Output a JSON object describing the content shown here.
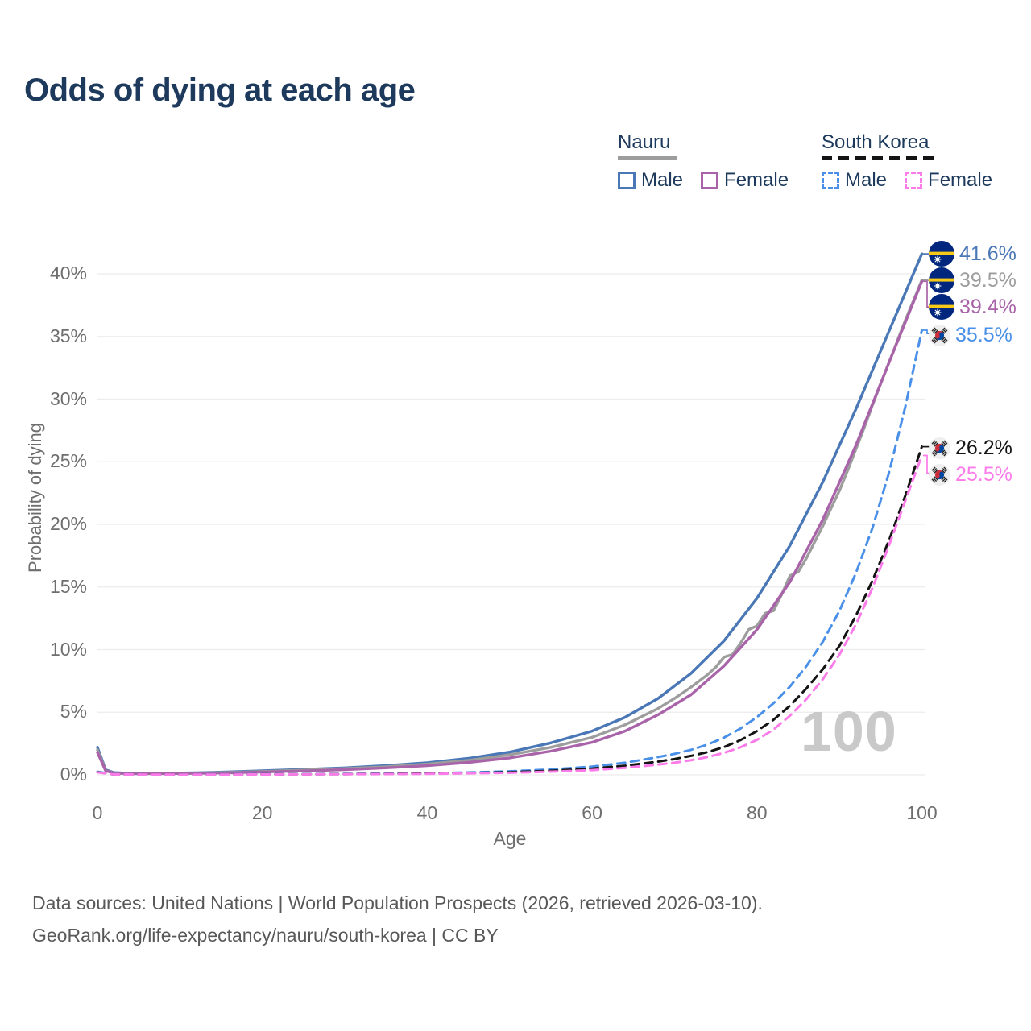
{
  "title": "Odds of dying at each age",
  "watermark": "100",
  "colors": {
    "title_text": "#1d3a5c",
    "nauru_male": "#4a77b6",
    "nauru_all": "#9d9d9d",
    "nauru_female": "#a964a9",
    "sk_male": "#4a90e8",
    "sk_all": "#141414",
    "sk_female": "#fb7ce9",
    "grid": "#ececec",
    "tick_text": "#6e6e6e",
    "watermark": "#c9c9c9",
    "nauru_flag_blue": "#01267e",
    "nauru_flag_yellow": "#f7c917",
    "korea_flag_red": "#cd2e3a",
    "korea_flag_blue": "#0047a0"
  },
  "legend": {
    "groups": [
      {
        "name": "Nauru",
        "style": "solid",
        "items": [
          {
            "label": "Male"
          },
          {
            "label": "Female"
          }
        ]
      },
      {
        "name": "South Korea",
        "style": "dashed",
        "items": [
          {
            "label": "Male"
          },
          {
            "label": "Female"
          }
        ]
      }
    ]
  },
  "footer": {
    "line1": "Data sources: United Nations | World Population Prospects (2026, retrieved 2026-03-10).",
    "line2": "GeoRank.org/life-expectancy/nauru/south-korea | CC BY"
  },
  "chart_data": {
    "type": "line",
    "title": "Odds of dying at each age",
    "xlabel": "Age",
    "ylabel": "Probability of dying",
    "xlim": [
      0,
      100
    ],
    "ylim": [
      0,
      42
    ],
    "x_ticks": [
      0,
      20,
      40,
      60,
      80,
      100
    ],
    "y_ticks": [
      0,
      5,
      10,
      15,
      20,
      25,
      30,
      35,
      40
    ],
    "grid": true,
    "legend_position": "top-right",
    "age_cursor": 100,
    "series": [
      {
        "name": "Nauru Male",
        "color_key": "nauru_male",
        "dash": false,
        "flag": "nauru",
        "end_label": "41.6%",
        "end_value": 41.6,
        "points": [
          [
            0,
            2.2
          ],
          [
            1,
            0.4
          ],
          [
            2,
            0.18
          ],
          [
            4,
            0.12
          ],
          [
            8,
            0.12
          ],
          [
            12,
            0.16
          ],
          [
            16,
            0.24
          ],
          [
            20,
            0.32
          ],
          [
            25,
            0.44
          ],
          [
            30,
            0.56
          ],
          [
            35,
            0.74
          ],
          [
            40,
            0.97
          ],
          [
            45,
            1.32
          ],
          [
            50,
            1.82
          ],
          [
            55,
            2.55
          ],
          [
            60,
            3.5
          ],
          [
            64,
            4.6
          ],
          [
            68,
            6.1
          ],
          [
            72,
            8.1
          ],
          [
            76,
            10.7
          ],
          [
            80,
            14.1
          ],
          [
            84,
            18.3
          ],
          [
            88,
            23.4
          ],
          [
            92,
            29.2
          ],
          [
            96,
            35.4
          ],
          [
            100,
            41.6
          ]
        ]
      },
      {
        "name": "Nauru Overall",
        "color_key": "nauru_all",
        "dash": false,
        "flag": "nauru",
        "end_label": "39.5%",
        "end_value": 39.5,
        "points": [
          [
            0,
            2.0
          ],
          [
            1,
            0.35
          ],
          [
            2,
            0.15
          ],
          [
            4,
            0.1
          ],
          [
            8,
            0.11
          ],
          [
            12,
            0.14
          ],
          [
            16,
            0.2
          ],
          [
            20,
            0.27
          ],
          [
            25,
            0.38
          ],
          [
            30,
            0.5
          ],
          [
            35,
            0.65
          ],
          [
            40,
            0.86
          ],
          [
            45,
            1.16
          ],
          [
            50,
            1.6
          ],
          [
            55,
            2.2
          ],
          [
            60,
            3.0
          ],
          [
            64,
            4.0
          ],
          [
            68,
            5.3
          ],
          [
            70,
            6.1
          ],
          [
            72,
            7.0
          ],
          [
            74,
            8.0
          ],
          [
            75,
            8.6
          ],
          [
            76,
            9.4
          ],
          [
            77,
            9.6
          ],
          [
            78,
            10.5
          ],
          [
            79,
            11.6
          ],
          [
            80,
            11.9
          ],
          [
            81,
            12.9
          ],
          [
            82,
            13.1
          ],
          [
            83,
            14.4
          ],
          [
            84,
            15.9
          ],
          [
            85,
            16.2
          ],
          [
            86,
            17.3
          ],
          [
            87,
            18.6
          ],
          [
            88,
            19.9
          ],
          [
            89,
            21.3
          ],
          [
            90,
            22.7
          ],
          [
            91,
            24.3
          ],
          [
            92,
            26.0
          ],
          [
            93,
            27.7
          ],
          [
            94,
            29.5
          ],
          [
            95,
            31.2
          ],
          [
            96,
            32.9
          ],
          [
            97,
            34.6
          ],
          [
            98,
            36.3
          ],
          [
            99,
            37.9
          ],
          [
            100,
            39.5
          ]
        ]
      },
      {
        "name": "Nauru Female",
        "color_key": "nauru_female",
        "dash": false,
        "flag": "nauru",
        "end_label": "39.4%",
        "end_value": 39.4,
        "points": [
          [
            0,
            1.8
          ],
          [
            1,
            0.32
          ],
          [
            2,
            0.14
          ],
          [
            4,
            0.1
          ],
          [
            8,
            0.1
          ],
          [
            12,
            0.12
          ],
          [
            16,
            0.17
          ],
          [
            20,
            0.23
          ],
          [
            25,
            0.31
          ],
          [
            30,
            0.42
          ],
          [
            35,
            0.56
          ],
          [
            40,
            0.73
          ],
          [
            45,
            1.0
          ],
          [
            50,
            1.36
          ],
          [
            55,
            1.9
          ],
          [
            60,
            2.6
          ],
          [
            64,
            3.5
          ],
          [
            68,
            4.8
          ],
          [
            72,
            6.4
          ],
          [
            76,
            8.7
          ],
          [
            80,
            11.6
          ],
          [
            84,
            15.4
          ],
          [
            88,
            20.4
          ],
          [
            92,
            26.3
          ],
          [
            96,
            32.9
          ],
          [
            100,
            39.4
          ]
        ]
      },
      {
        "name": "South Korea Male",
        "color_key": "sk_male",
        "dash": true,
        "flag": "korea",
        "end_label": "35.5%",
        "end_value": 35.5,
        "points": [
          [
            0,
            0.25
          ],
          [
            2,
            0.04
          ],
          [
            10,
            0.03
          ],
          [
            20,
            0.05
          ],
          [
            30,
            0.08
          ],
          [
            40,
            0.13
          ],
          [
            45,
            0.19
          ],
          [
            50,
            0.28
          ],
          [
            55,
            0.43
          ],
          [
            60,
            0.66
          ],
          [
            64,
            0.97
          ],
          [
            68,
            1.42
          ],
          [
            70,
            1.68
          ],
          [
            72,
            2.0
          ],
          [
            74,
            2.42
          ],
          [
            76,
            2.98
          ],
          [
            78,
            3.7
          ],
          [
            80,
            4.62
          ],
          [
            82,
            5.72
          ],
          [
            84,
            7.05
          ],
          [
            86,
            8.68
          ],
          [
            88,
            10.65
          ],
          [
            90,
            13.1
          ],
          [
            92,
            16.1
          ],
          [
            94,
            19.7
          ],
          [
            96,
            24.1
          ],
          [
            98,
            29.4
          ],
          [
            100,
            35.5
          ]
        ]
      },
      {
        "name": "South Korea Overall",
        "color_key": "sk_all",
        "dash": true,
        "flag": "korea",
        "end_label": "26.2%",
        "end_value": 26.2,
        "points": [
          [
            0,
            0.22
          ],
          [
            2,
            0.03
          ],
          [
            10,
            0.02
          ],
          [
            20,
            0.04
          ],
          [
            30,
            0.06
          ],
          [
            40,
            0.1
          ],
          [
            45,
            0.15
          ],
          [
            50,
            0.21
          ],
          [
            55,
            0.33
          ],
          [
            60,
            0.5
          ],
          [
            64,
            0.73
          ],
          [
            68,
            1.06
          ],
          [
            70,
            1.27
          ],
          [
            72,
            1.52
          ],
          [
            74,
            1.82
          ],
          [
            76,
            2.22
          ],
          [
            78,
            2.78
          ],
          [
            80,
            3.5
          ],
          [
            82,
            4.4
          ],
          [
            84,
            5.52
          ],
          [
            86,
            6.9
          ],
          [
            88,
            8.45
          ],
          [
            90,
            10.3
          ],
          [
            92,
            12.7
          ],
          [
            94,
            15.5
          ],
          [
            96,
            18.7
          ],
          [
            98,
            22.3
          ],
          [
            100,
            26.2
          ]
        ]
      },
      {
        "name": "South Korea Female",
        "color_key": "sk_female",
        "dash": true,
        "flag": "korea",
        "end_label": "25.5%",
        "end_value": 25.5,
        "points": [
          [
            0,
            0.2
          ],
          [
            2,
            0.03
          ],
          [
            10,
            0.02
          ],
          [
            20,
            0.03
          ],
          [
            30,
            0.05
          ],
          [
            40,
            0.08
          ],
          [
            45,
            0.12
          ],
          [
            50,
            0.17
          ],
          [
            55,
            0.26
          ],
          [
            60,
            0.38
          ],
          [
            64,
            0.56
          ],
          [
            68,
            0.82
          ],
          [
            70,
            0.97
          ],
          [
            72,
            1.17
          ],
          [
            74,
            1.42
          ],
          [
            76,
            1.76
          ],
          [
            78,
            2.2
          ],
          [
            80,
            2.8
          ],
          [
            82,
            3.62
          ],
          [
            84,
            4.72
          ],
          [
            86,
            6.05
          ],
          [
            88,
            7.65
          ],
          [
            90,
            9.6
          ],
          [
            92,
            12.0
          ],
          [
            94,
            14.9
          ],
          [
            96,
            18.3
          ],
          [
            98,
            21.9
          ],
          [
            100,
            25.5
          ]
        ]
      }
    ]
  }
}
